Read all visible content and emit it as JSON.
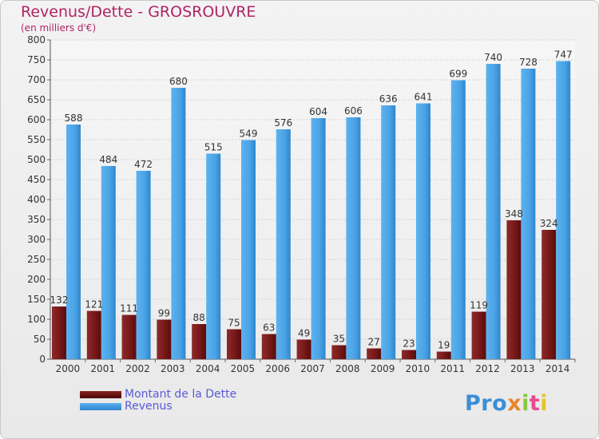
{
  "header": {
    "title": "Revenus/Dette - GROSROUVRE",
    "subtitle": "(en milliers d'€)"
  },
  "legend": {
    "items": [
      {
        "label": "Montant de la Dette",
        "color": "#7a1414"
      },
      {
        "label": "Revenus",
        "color": "#4aa3e6"
      }
    ]
  },
  "logo": {
    "text": "Proxiti"
  },
  "chart_data": {
    "type": "bar",
    "categories": [
      "2000",
      "2001",
      "2002",
      "2003",
      "2004",
      "2005",
      "2006",
      "2007",
      "2008",
      "2009",
      "2010",
      "2011",
      "2012",
      "2013",
      "2014"
    ],
    "series": [
      {
        "name": "Montant de la Dette",
        "color": "#7a1414",
        "values": [
          132,
          121,
          111,
          99,
          88,
          75,
          63,
          49,
          35,
          27,
          23,
          19,
          119,
          348,
          324
        ]
      },
      {
        "name": "Revenus",
        "color": "#4aa3e6",
        "values": [
          588,
          484,
          472,
          680,
          515,
          549,
          576,
          604,
          606,
          636,
          641,
          699,
          740,
          728,
          747
        ]
      }
    ],
    "ylim": [
      0,
      800
    ],
    "yticks": [
      0,
      50,
      100,
      150,
      200,
      250,
      300,
      350,
      400,
      450,
      500,
      550,
      600,
      650,
      700,
      750,
      800
    ],
    "grid": true,
    "legend_position": "bottom-left",
    "title": "Revenus/Dette - GROSROUVRE",
    "ylabel": "(en milliers d'€)"
  }
}
